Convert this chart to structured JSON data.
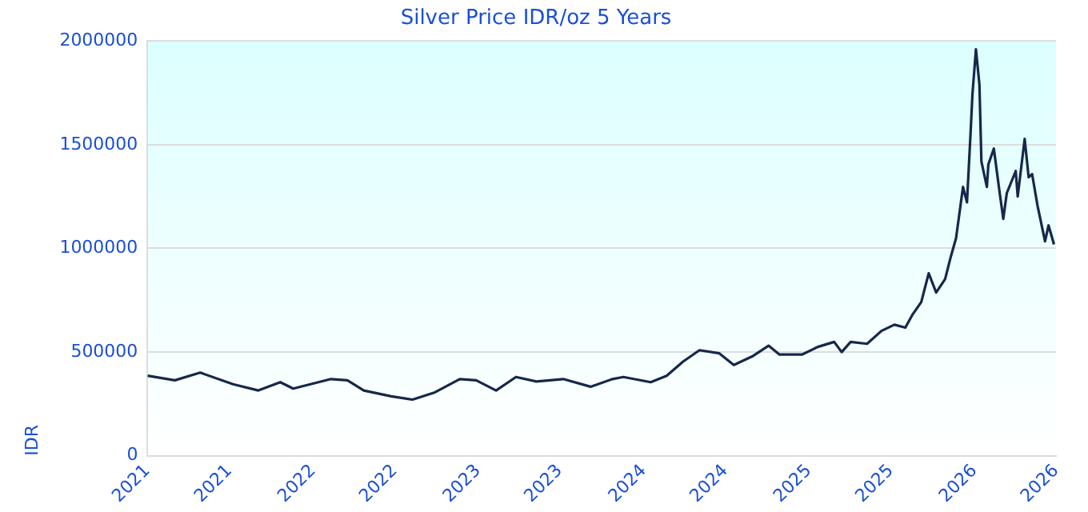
{
  "chart_data": {
    "type": "line",
    "title": "Silver Price IDR/oz 5 Years",
    "ylabel": "IDR",
    "x": [
      "2021-07-01",
      "2021-08-25",
      "2021-10-15",
      "2021-12-20",
      "2022-02-09",
      "2022-03-25",
      "2022-04-20",
      "2022-07-05",
      "2022-08-07",
      "2022-09-09",
      "2022-11-03",
      "2022-12-16",
      "2023-01-30",
      "2023-03-21",
      "2023-04-23",
      "2023-06-02",
      "2023-07-12",
      "2023-08-22",
      "2023-10-15",
      "2023-12-09",
      "2024-01-22",
      "2024-02-13",
      "2024-04-08",
      "2024-05-10",
      "2024-06-12",
      "2024-07-15",
      "2024-08-24",
      "2024-09-22",
      "2024-10-29",
      "2024-12-01",
      "2024-12-23",
      "2025-02-06",
      "2025-03-10",
      "2025-04-12",
      "2025-04-27",
      "2025-05-15",
      "2025-06-17",
      "2025-07-16",
      "2025-08-11",
      "2025-09-02",
      "2025-09-16",
      "2025-10-04",
      "2025-10-19",
      "2025-11-03",
      "2025-11-21",
      "2025-12-02",
      "2025-12-13",
      "2025-12-27",
      "2026-01-04",
      "2026-01-11",
      "2026-01-15",
      "2026-01-22",
      "2026-01-29",
      "2026-02-02",
      "2026-02-13",
      "2026-02-16",
      "2026-02-27",
      "2026-03-10",
      "2026-03-18",
      "2026-03-25",
      "2026-04-12",
      "2026-04-16",
      "2026-04-30",
      "2026-05-08",
      "2026-05-15",
      "2026-05-26",
      "2026-06-10",
      "2026-06-17",
      "2026-06-28"
    ],
    "series": [
      {
        "color": "#16284a",
        "values": [
          386000,
          364000,
          401000,
          345000,
          315000,
          355000,
          324000,
          370000,
          364000,
          315000,
          287000,
          271000,
          306000,
          370000,
          364000,
          315000,
          380000,
          358000,
          370000,
          333000,
          370000,
          380000,
          355000,
          386000,
          454000,
          509000,
          494000,
          438000,
          479000,
          531000,
          488000,
          488000,
          525000,
          549000,
          500000,
          549000,
          540000,
          602000,
          632000,
          618000,
          679000,
          741000,
          880000,
          787000,
          852000,
          956000,
          1049000,
          1296000,
          1222000,
          1546000,
          1744000,
          1960000,
          1790000,
          1419000,
          1296000,
          1405000,
          1481000,
          1281000,
          1142000,
          1266000,
          1373000,
          1250000,
          1528000,
          1343000,
          1358000,
          1204000,
          1034000,
          1111000,
          1019000
        ]
      }
    ],
    "xlim": [
      "2021-07-01",
      "2026-07-02"
    ],
    "xticks": [
      {
        "value": "2021-07-01",
        "label": "2021"
      },
      {
        "value": "2021-12-13",
        "label": "2021"
      },
      {
        "value": "2022-05-30",
        "label": "2022"
      },
      {
        "value": "2022-11-10",
        "label": "2022"
      },
      {
        "value": "2023-04-27",
        "label": "2023"
      },
      {
        "value": "2023-10-08",
        "label": "2023"
      },
      {
        "value": "2024-03-25",
        "label": "2024"
      },
      {
        "value": "2024-09-05",
        "label": "2024"
      },
      {
        "value": "2025-02-20",
        "label": "2025"
      },
      {
        "value": "2025-08-04",
        "label": "2025"
      },
      {
        "value": "2026-01-19",
        "label": "2026"
      },
      {
        "value": "2026-07-02",
        "label": "2026"
      }
    ],
    "ylim": [
      0,
      2000000
    ],
    "yticks": [
      0,
      500000,
      1000000,
      1500000,
      2000000
    ],
    "grid": "y",
    "legend": false,
    "marker": "none",
    "line_style": "solid"
  }
}
